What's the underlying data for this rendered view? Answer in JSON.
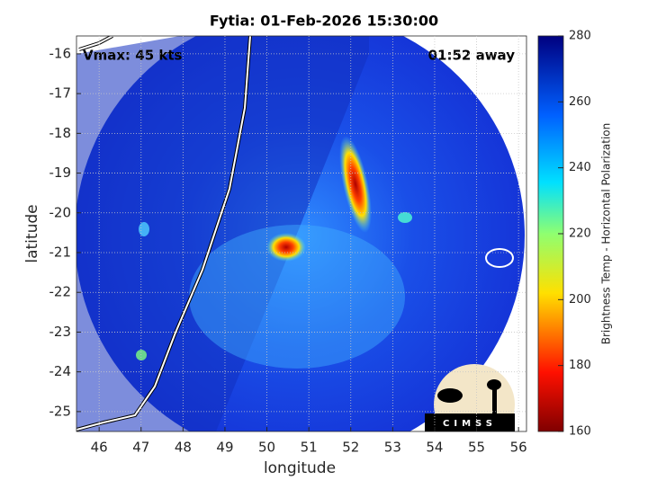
{
  "chart_data": {
    "type": "map",
    "title": "Fytia: 01-Feb-2026 15:30:00",
    "xlabel": "longitude",
    "ylabel": "latitude",
    "xlim": [
      45.46,
      56.19
    ],
    "ylim": [
      -25.5,
      -15.55
    ],
    "xticks": [
      46,
      47,
      48,
      49,
      50,
      51,
      52,
      53,
      54,
      55,
      56
    ],
    "yticks": [
      -25,
      -24,
      -23,
      -22,
      -21,
      -20,
      -19,
      -18,
      -17,
      -16
    ],
    "grid": true,
    "annotations": [
      "Vmax: 45 kts",
      "01:52 away"
    ],
    "colorbar": {
      "label": "Brightness Temp - Horizontal Polarization",
      "lim": [
        160,
        280
      ],
      "ticks": [
        160,
        180,
        200,
        220,
        240,
        260,
        280
      ]
    },
    "logo": "CIMSS"
  }
}
